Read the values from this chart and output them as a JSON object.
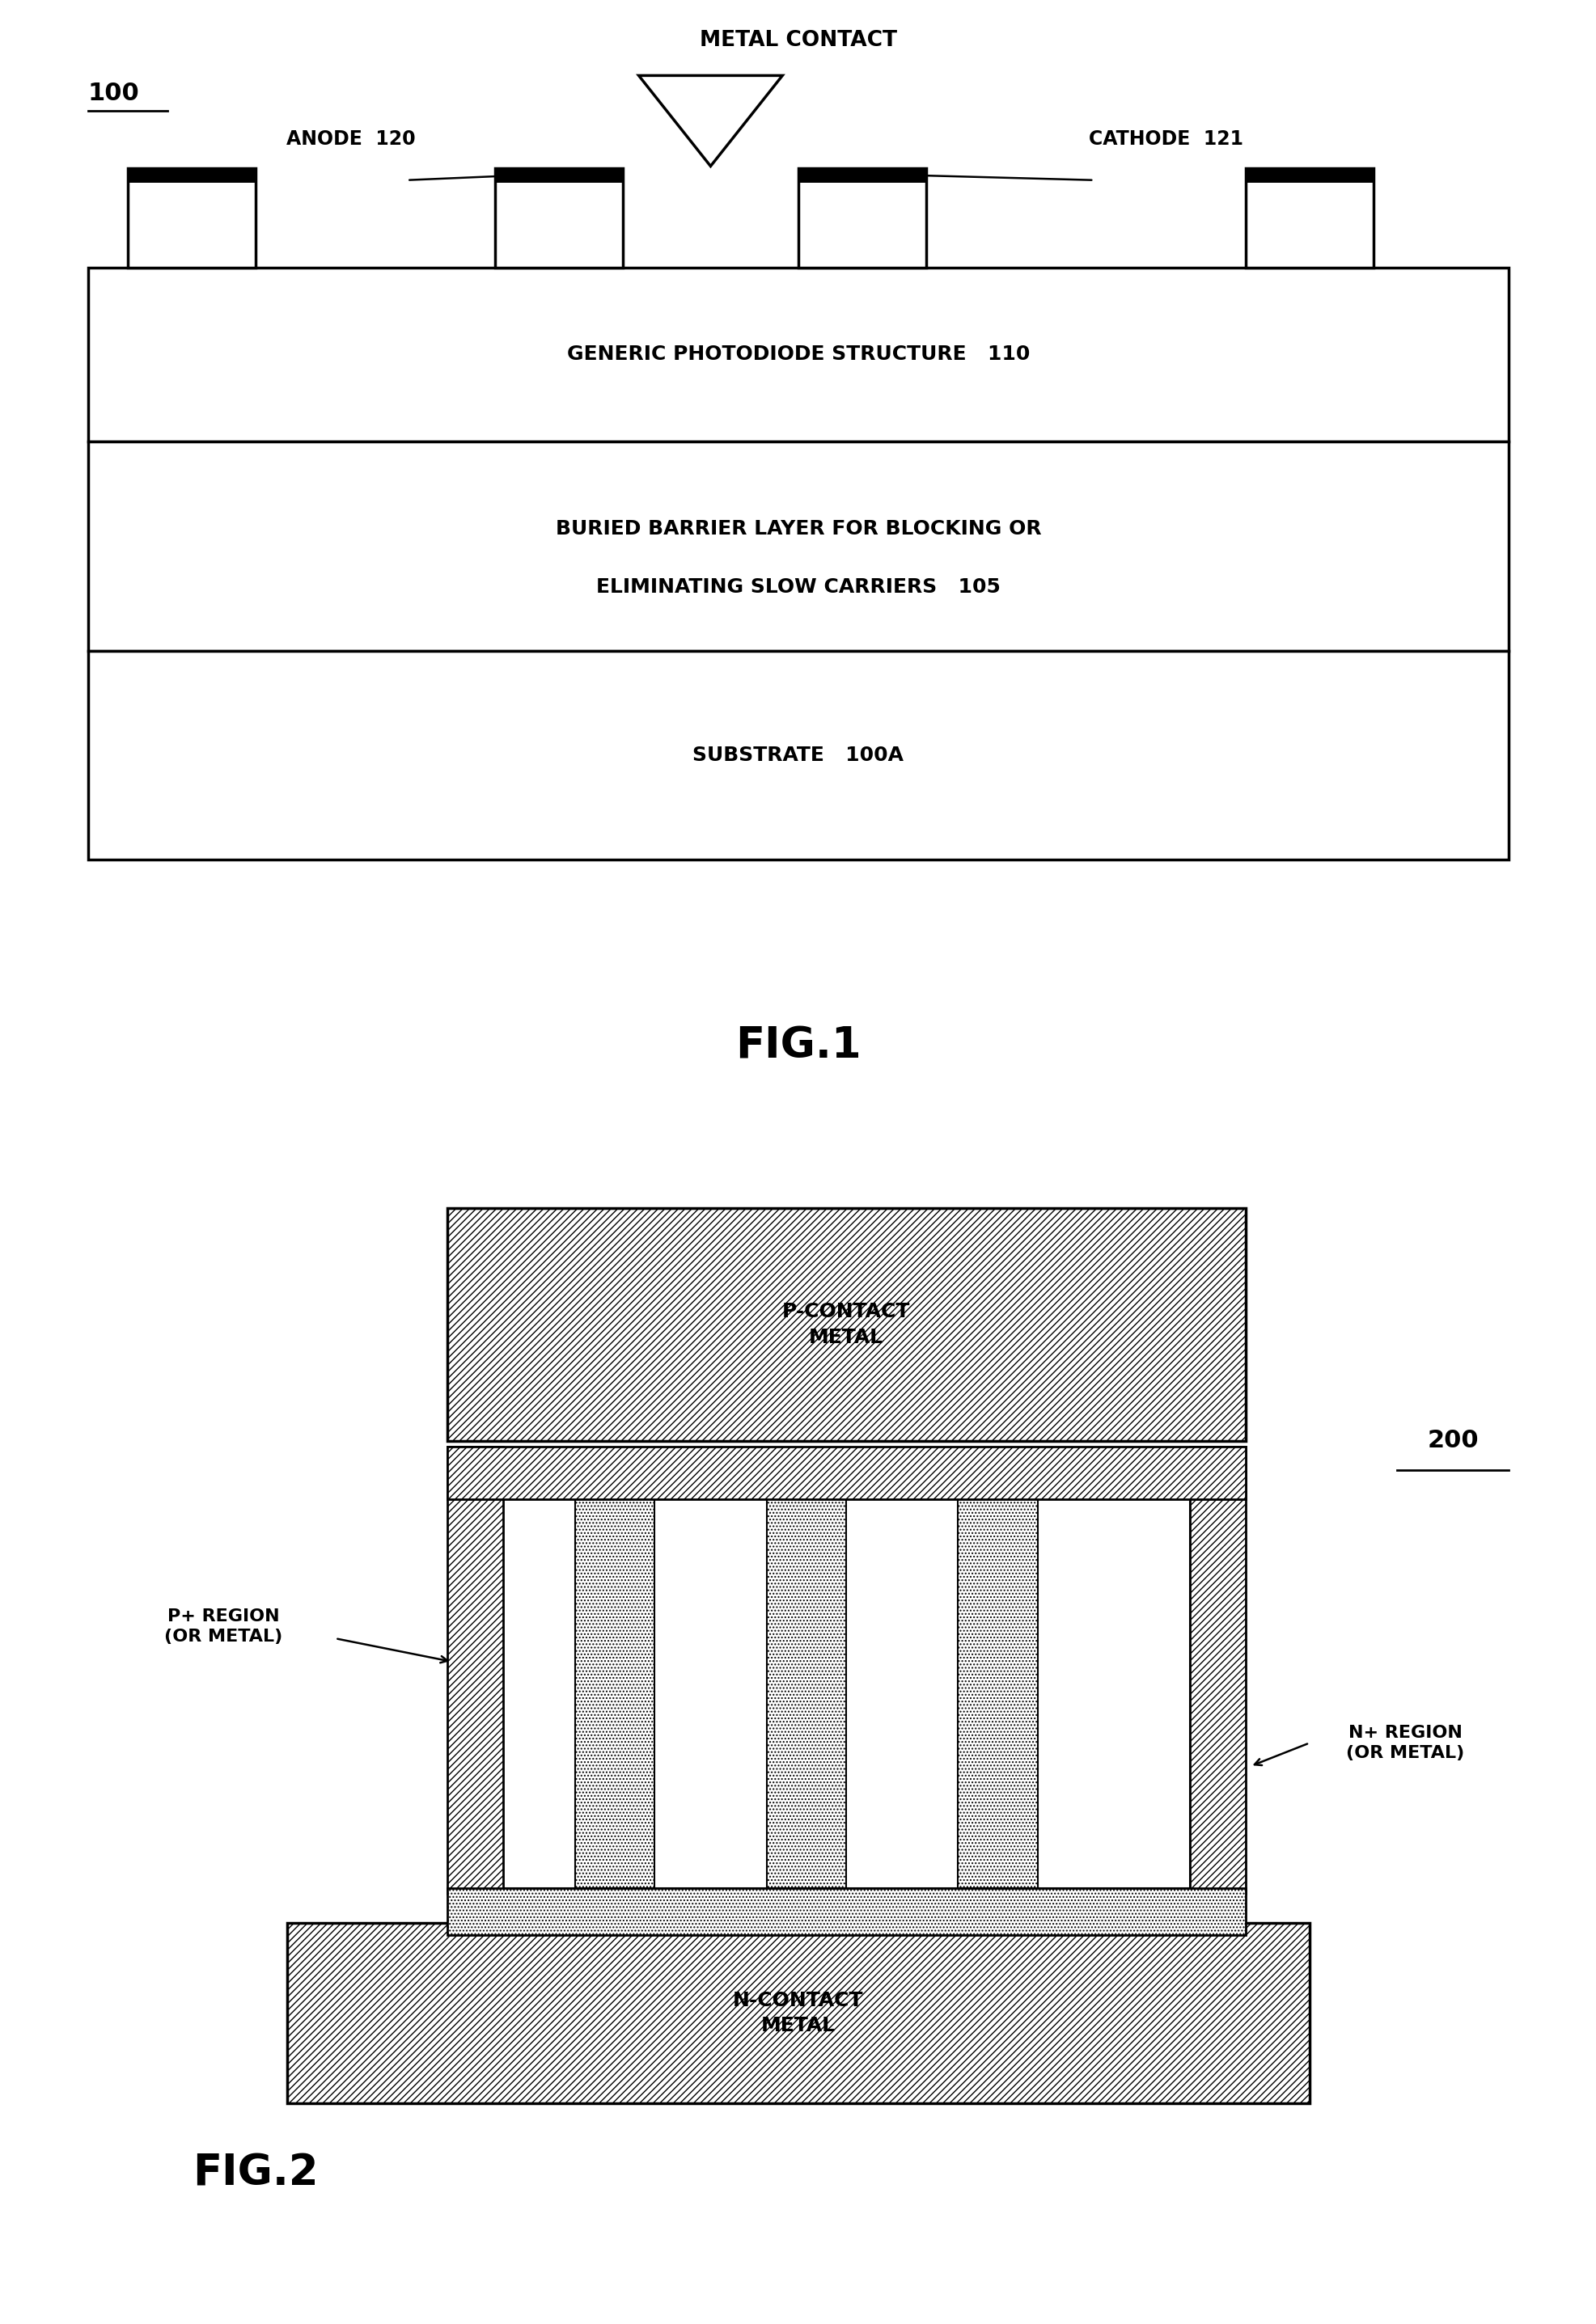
{
  "fig1": {
    "label": "100",
    "layer1_text": "GENERIC PHOTODIODE STRUCTURE   110",
    "layer2_text1": "BURIED BARRIER LAYER FOR BLOCKING OR",
    "layer2_text2": "ELIMINATING SLOW CARRIERS   105",
    "layer3_text": "SUBSTRATE   100A",
    "metal_contact_label": "METAL CONTACT",
    "anode_label": "ANODE  120",
    "cathode_label": "CATHODE  121",
    "fig_label": "FIG.1"
  },
  "fig2": {
    "label": "200",
    "fig_label": "FIG.2",
    "p_contact_label": "P-CONTACT\nMETAL",
    "n_contact_label": "N-CONTACT\nMETAL",
    "p_region_label": "P+ REGION\n(OR METAL)",
    "n_region_label": "N+ REGION\n(OR METAL)"
  }
}
